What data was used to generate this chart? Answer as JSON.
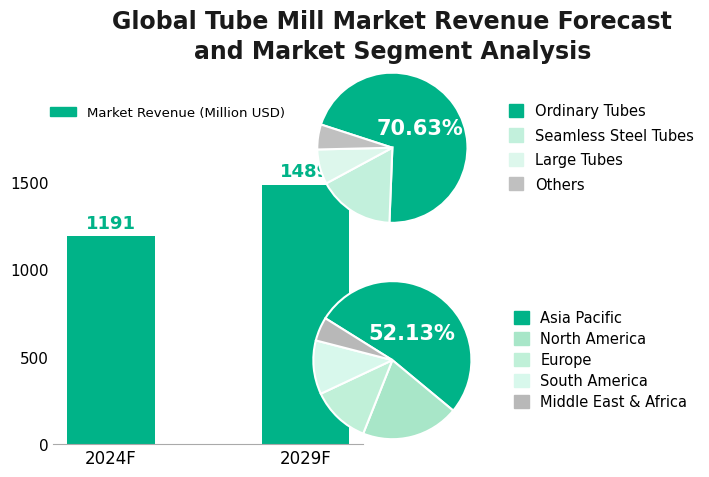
{
  "title": "Global Tube Mill Market Revenue Forecast\nand Market Segment Analysis",
  "title_fontsize": 17,
  "title_color": "#1a1a1a",
  "background_color": "#ffffff",
  "bar_categories": [
    "2024F",
    "2029F"
  ],
  "bar_values": [
    1191,
    1489
  ],
  "bar_color": "#00b388",
  "bar_legend_label": "Market Revenue (Million USD)",
  "bar_ylim": [
    0,
    1700
  ],
  "bar_yticks": [
    0,
    500,
    1000,
    1500
  ],
  "bar_value_color": "#00b388",
  "pie1_values": [
    70.63,
    16.5,
    7.5,
    5.37
  ],
  "pie1_labels": [
    "Ordinary Tubes",
    "Seamless Steel Tubes",
    "Large Tubes",
    "Others"
  ],
  "pie1_colors": [
    "#00b388",
    "#c2f0dc",
    "#ddf7ec",
    "#c0c0c0"
  ],
  "pie1_pct_label": "70.63%",
  "pie1_startangle": 162,
  "pie2_values": [
    52.13,
    20.0,
    12.0,
    11.0,
    4.87
  ],
  "pie2_labels": [
    "Asia Pacific",
    "North America",
    "Europe",
    "South America",
    "Middle East & Africa"
  ],
  "pie2_colors": [
    "#00b388",
    "#a8e6c8",
    "#c0f0d8",
    "#d8f8ec",
    "#b8b8b8"
  ],
  "pie2_pct_label": "52.13%",
  "pie2_startangle": 148,
  "legend_fontsize": 10.5,
  "pct_label_fontsize": 15,
  "pct_label_color": "#ffffff"
}
